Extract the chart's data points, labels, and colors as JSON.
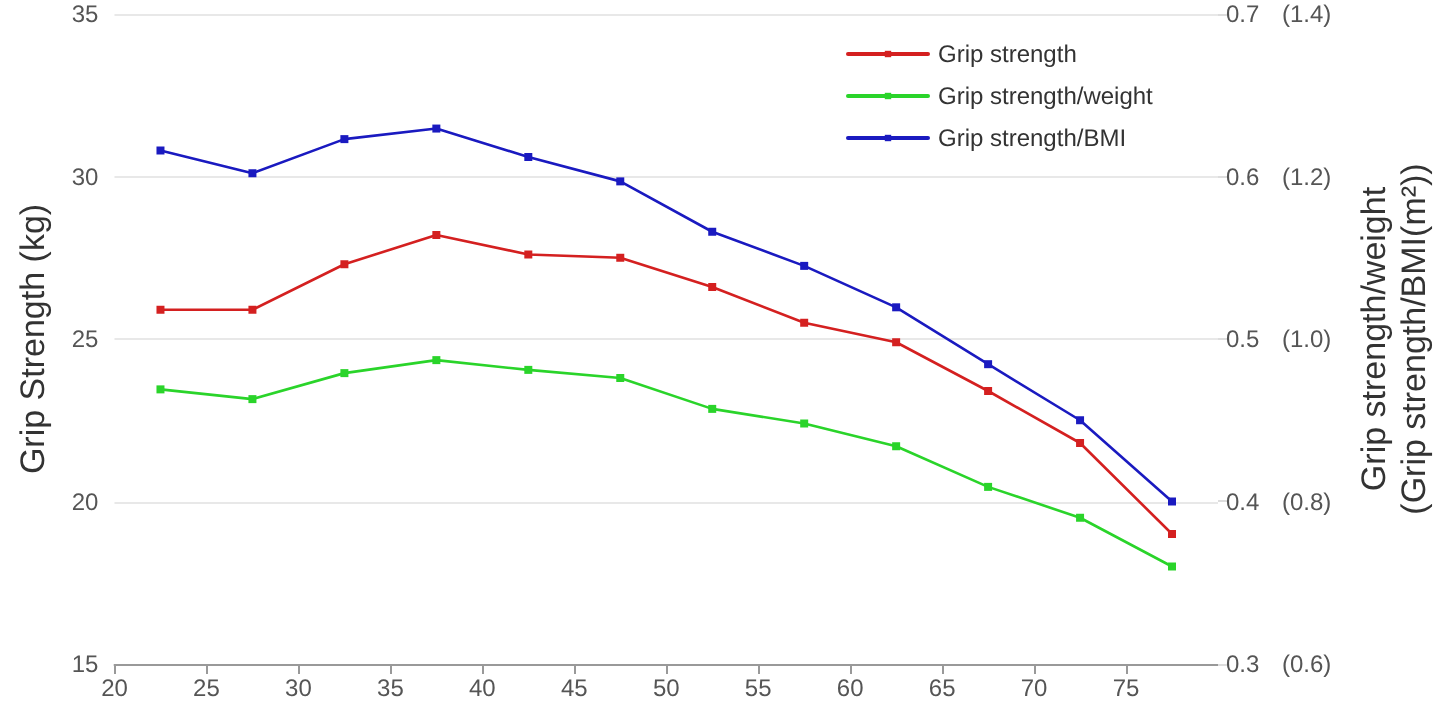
{
  "chart_data": {
    "type": "line",
    "xlabel": null,
    "ylabel": "Grip Strength (kg)",
    "y2label": "Grip strength/weight\n(Grip strength/BMI(m²))",
    "x": [
      22.5,
      27.5,
      32.5,
      37.5,
      42.5,
      47.5,
      52.5,
      57.5,
      62.5,
      67.5,
      72.5,
      77.5
    ],
    "series": [
      {
        "name": "Grip strength",
        "color": "#d42020",
        "axis": "y",
        "values": [
          25.9,
          25.9,
          27.3,
          28.2,
          27.6,
          27.5,
          26.6,
          25.5,
          24.9,
          23.4,
          21.8,
          19.0
        ]
      },
      {
        "name": "Grip strength/weight",
        "color": "#2ad42a",
        "axis": "y2",
        "values": [
          0.469,
          0.463,
          0.479,
          0.487,
          0.481,
          0.476,
          0.457,
          0.448,
          0.434,
          0.409,
          0.39,
          0.36
        ]
      },
      {
        "name": "Grip strength/BMI",
        "color": "#1a1ac0",
        "axis": "y3",
        "values": [
          1.232,
          1.204,
          1.246,
          1.259,
          1.224,
          1.194,
          1.132,
          1.09,
          1.039,
          0.969,
          0.9,
          0.8
        ]
      }
    ],
    "xlim": [
      20,
      80
    ],
    "xticks": [
      20,
      25,
      30,
      35,
      40,
      45,
      50,
      55,
      60,
      65,
      70,
      75
    ],
    "ylim": [
      15,
      35
    ],
    "yticks": [
      15,
      20,
      25,
      30,
      35
    ],
    "y2lim": [
      0.3,
      0.7
    ],
    "y2ticks": [
      0.3,
      0.4,
      0.5,
      0.6,
      0.7
    ],
    "y3lim": [
      0.6,
      1.4
    ],
    "y3ticks": [
      {
        "value": 0.6,
        "label": "(0.6)"
      },
      {
        "value": 0.8,
        "label": "(0.8)"
      },
      {
        "value": 1.0,
        "label": "(1.0)"
      },
      {
        "value": 1.2,
        "label": "(1.2)"
      },
      {
        "value": 1.4,
        "label": "(1.4)"
      }
    ],
    "grid": "y",
    "legend": "top right",
    "marker": "square",
    "line_style": "solid"
  }
}
